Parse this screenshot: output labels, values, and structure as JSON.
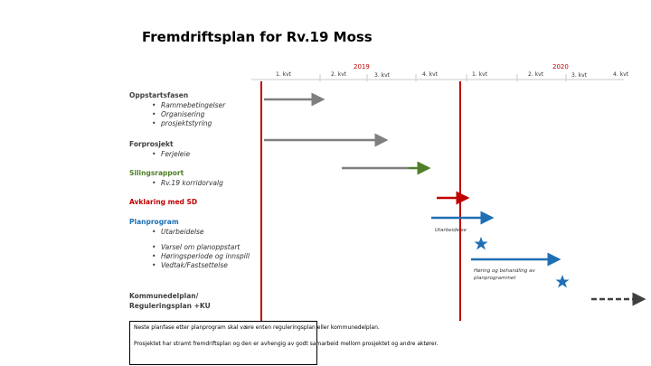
{
  "title": "Fremdriftsplan for Rv.19 Moss",
  "years": [
    "2019",
    "2020"
  ],
  "quarters": [
    "1. kvt",
    "2. kvt",
    "3. kvt",
    "4. kvt",
    "1. kvt",
    "2. kvt",
    "3. kvt",
    "4. kvt"
  ],
  "sections": {
    "oppstart": {
      "heading": "Oppstartsfasen",
      "items": [
        "Rammebetingelser",
        "Organisering",
        "prosjektstyring"
      ]
    },
    "forprosjekt": {
      "heading": "Forprosjekt",
      "items": [
        "Ferjeleie"
      ]
    },
    "silingsrapport": {
      "heading": "Silingsrapport",
      "items": [
        "Rv.19 korridorvalg"
      ]
    },
    "avklaring": {
      "heading": "Avklaring med SD"
    },
    "planprogram": {
      "heading": "Planprogram",
      "items": [
        "Utarbeidelse"
      ],
      "items2": [
        "Varsel om planoppstart",
        "Høringsperiode og innspill",
        "Vedtak/Fastsettelse"
      ]
    },
    "kommunedelplan": {
      "heading": "Kommunedelplan/",
      "heading2": "Reguleringsplan +KU"
    }
  },
  "annotations": {
    "utarbeidelse": "Utarbeidelse",
    "horing_line1": "Høring og behandling av",
    "horing_line2": "planprogrammet"
  },
  "notes": [
    "Neste planfase etter planprogram skal være enten reguleringsplan eller kommunedelplan.",
    "Prosjektet har stramt fremdriftsplan og den er avhengig av godt samarbeid mellom prosjektet og andre aktører."
  ],
  "colors": {
    "grey": "#7f7f7f",
    "green": "#4f7f27",
    "red": "#c00000",
    "blue": "#1f6fb4",
    "dark": "#404040"
  }
}
